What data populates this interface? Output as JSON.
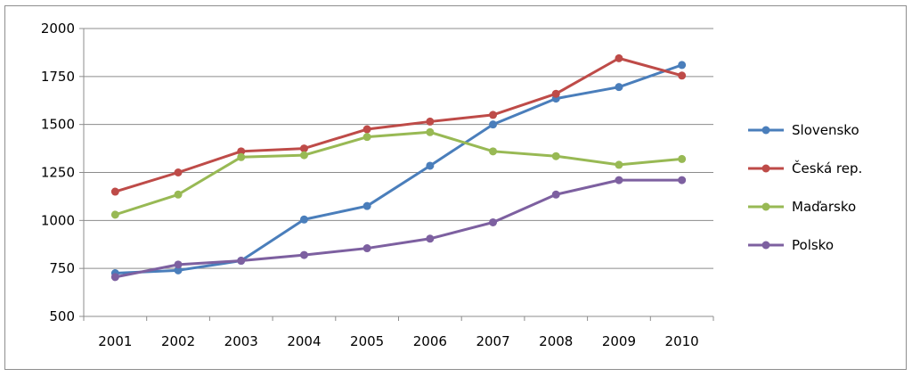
{
  "chart_data": {
    "type": "line",
    "title": "",
    "xlabel": "",
    "ylabel": "",
    "categories": [
      "2001",
      "2002",
      "2003",
      "2004",
      "2005",
      "2006",
      "2007",
      "2008",
      "2009",
      "2010"
    ],
    "ylim": [
      500,
      2000
    ],
    "yticks": [
      500,
      750,
      1000,
      1250,
      1500,
      1750,
      2000
    ],
    "grid": true,
    "legend": "right",
    "series": [
      {
        "name": "Slovensko",
        "color": "#4a7ebb",
        "values": [
          725,
          740,
          790,
          1005,
          1075,
          1285,
          1500,
          1635,
          1695,
          1810
        ]
      },
      {
        "name": "Česká rep.",
        "color": "#be4b48",
        "values": [
          1150,
          1250,
          1360,
          1375,
          1475,
          1515,
          1550,
          1660,
          1845,
          1755
        ]
      },
      {
        "name": "Maďarsko",
        "color": "#98b954",
        "values": [
          1030,
          1135,
          1330,
          1340,
          1435,
          1460,
          1360,
          1335,
          1290,
          1320
        ]
      },
      {
        "name": "Polsko",
        "color": "#7d60a0",
        "values": [
          705,
          770,
          790,
          820,
          855,
          905,
          990,
          1135,
          1210,
          1210
        ]
      }
    ]
  }
}
